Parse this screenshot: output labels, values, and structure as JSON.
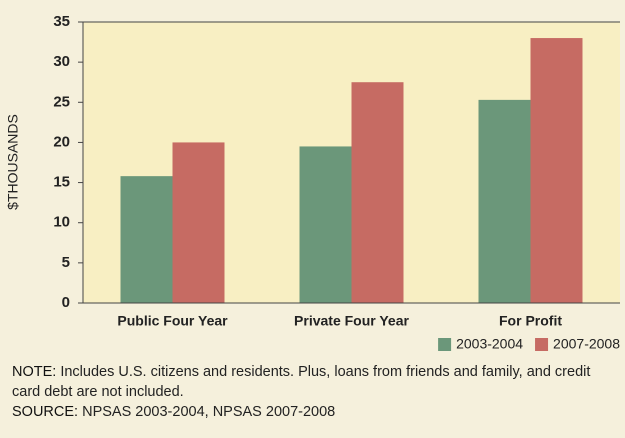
{
  "chart_data": {
    "type": "bar",
    "y_label": "$THOUSANDS",
    "categories": [
      "Public Four Year",
      "Private Four Year",
      "For Profit"
    ],
    "series": [
      {
        "name": "2003-2004",
        "color": "#6b977a",
        "values": [
          15.8,
          19.5,
          25.3
        ]
      },
      {
        "name": "2007-2008",
        "color": "#c66b63",
        "values": [
          20.0,
          27.5,
          33.0
        ]
      }
    ],
    "ylim": [
      0,
      35
    ],
    "yticks": [
      0,
      5,
      10,
      15,
      20,
      25,
      30,
      35
    ],
    "grid": false,
    "legend": "bottom-right"
  },
  "notes": [
    {
      "label": "NOTE:",
      "text": "Includes U.S. citizens and residents. Plus, loans from friends and family, and credit card debt are not included."
    },
    {
      "label": "SOURCE:",
      "text": "NPSAS 2003-2004, NPSAS 2007-2008"
    }
  ]
}
